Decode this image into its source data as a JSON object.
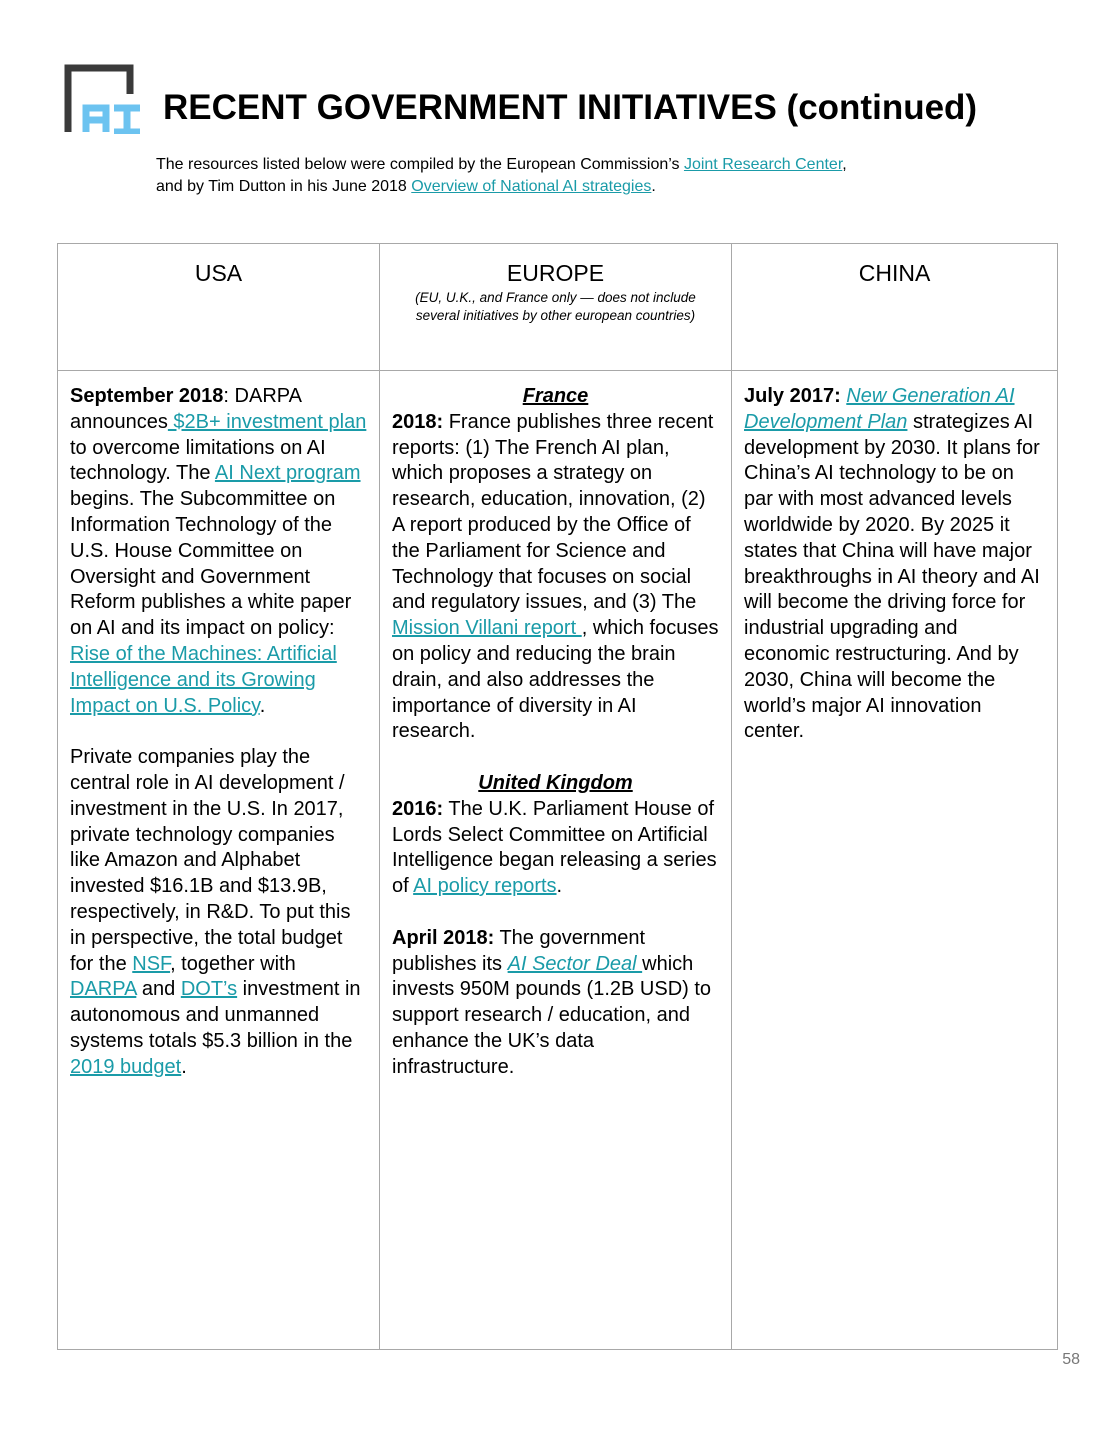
{
  "header": {
    "logo_text": "AI",
    "title": "RECENT GOVERNMENT INITIATIVES (continued)",
    "intro": [
      {
        "t": "The resources listed below were compiled by the European Commission’s "
      },
      {
        "t": "Joint Research Center",
        "link": true
      },
      {
        "t": ","
      },
      {
        "br": true
      },
      {
        "t": "and by Tim Dutton in his June 2018 "
      },
      {
        "t": "Overview of National AI strategies",
        "link": true
      },
      {
        "t": "."
      }
    ]
  },
  "table": {
    "columns": [
      {
        "label": "USA",
        "sub": ""
      },
      {
        "label": "EUROPE",
        "sub": "(EU, U.K., and France only — does not include several initiatives by other european countries)"
      },
      {
        "label": "CHINA",
        "sub": ""
      }
    ],
    "cells": [
      [
        [
          {
            "t": "September 2018",
            "b": true
          },
          {
            "t": ": DARPA announces"
          },
          {
            "t": " $2B+ investment plan",
            "link": true
          },
          {
            "t": " to overcome limitations on AI technology. The "
          },
          {
            "t": "AI Next program",
            "link": true
          },
          {
            "t": " begins. The Subcommittee on Information Technology of the U.S. House Committee on Oversight and Government Reform publishes a white paper on AI and its impact on policy: "
          },
          {
            "t": "Rise of the Machines: Artificial Intelligence and its Growing Impact on U.S. Policy",
            "link": true
          },
          {
            "t": "."
          }
        ],
        [
          {
            "t": "Private companies play the central role in AI development / investment in the U.S. In 2017, private technology companies like Amazon and Alphabet invested $16.1B and $13.9B, respectively, in R&D. To put this in perspective, the total budget for the "
          },
          {
            "t": "NSF",
            "link": true
          },
          {
            "t": ", together with "
          },
          {
            "t": "DARPA",
            "link": true
          },
          {
            "t": " and "
          },
          {
            "t": "DOT’s",
            "link": true
          },
          {
            "t": " investment in autonomous and unmanned systems totals $5.3 billion in the "
          },
          {
            "t": "2019 budget",
            "link": true
          },
          {
            "t": "."
          }
        ]
      ],
      [
        [
          {
            "t": "France",
            "b": true,
            "i": true,
            "u": true,
            "center": true
          },
          {
            "t": "2018:",
            "b": true
          },
          {
            "t": " France publishes three recent reports: (1) The French AI plan, which proposes a strategy on research, education, innovation, (2) A report produced by the Office of the Parliament for Science and Technology that focuses on social and regulatory issues, and (3) The "
          },
          {
            "t": "Mission Villani report ",
            "link": true
          },
          {
            "t": ", which focuses on policy and reducing the brain drain, and also addresses the importance of diversity in AI research."
          }
        ],
        [
          {
            "t": "United Kingdom",
            "b": true,
            "i": true,
            "u": true,
            "center": true
          },
          {
            "t": "2016:",
            "b": true
          },
          {
            "t": " The U.K. Parliament House of Lords Select Committee on Artificial Intelligence began releasing a series of "
          },
          {
            "t": "AI policy reports",
            "link": true
          },
          {
            "t": "."
          }
        ],
        [
          {
            "t": "April 2018:",
            "b": true
          },
          {
            "t": " The government publishes its "
          },
          {
            "t": "AI Sector Deal ",
            "link": true,
            "i": true
          },
          {
            "t": "which invests 950M pounds (1.2B USD) to support research / education, and enhance the UK’s data infrastructure."
          }
        ]
      ],
      [
        [
          {
            "t": "July 2017:",
            "b": true
          },
          {
            "t": " "
          },
          {
            "t": "New Generation AI Development Plan",
            "link": true,
            "i": true
          },
          {
            "t": " strategizes AI development by 2030. It plans for China’s AI technology to be on par with most advanced levels worldwide by 2020. By 2025 it states that China will have major breakthroughs in AI theory and AI will become the driving force for industrial upgrading and economic restructuring. And by 2030, China will become the world’s major AI innovation center."
          }
        ]
      ]
    ]
  },
  "page_number": "58",
  "colors": {
    "link": "#1a9ba8",
    "logo_dark": "#3a3a3a",
    "logo_blue": "#6cc3f0"
  }
}
